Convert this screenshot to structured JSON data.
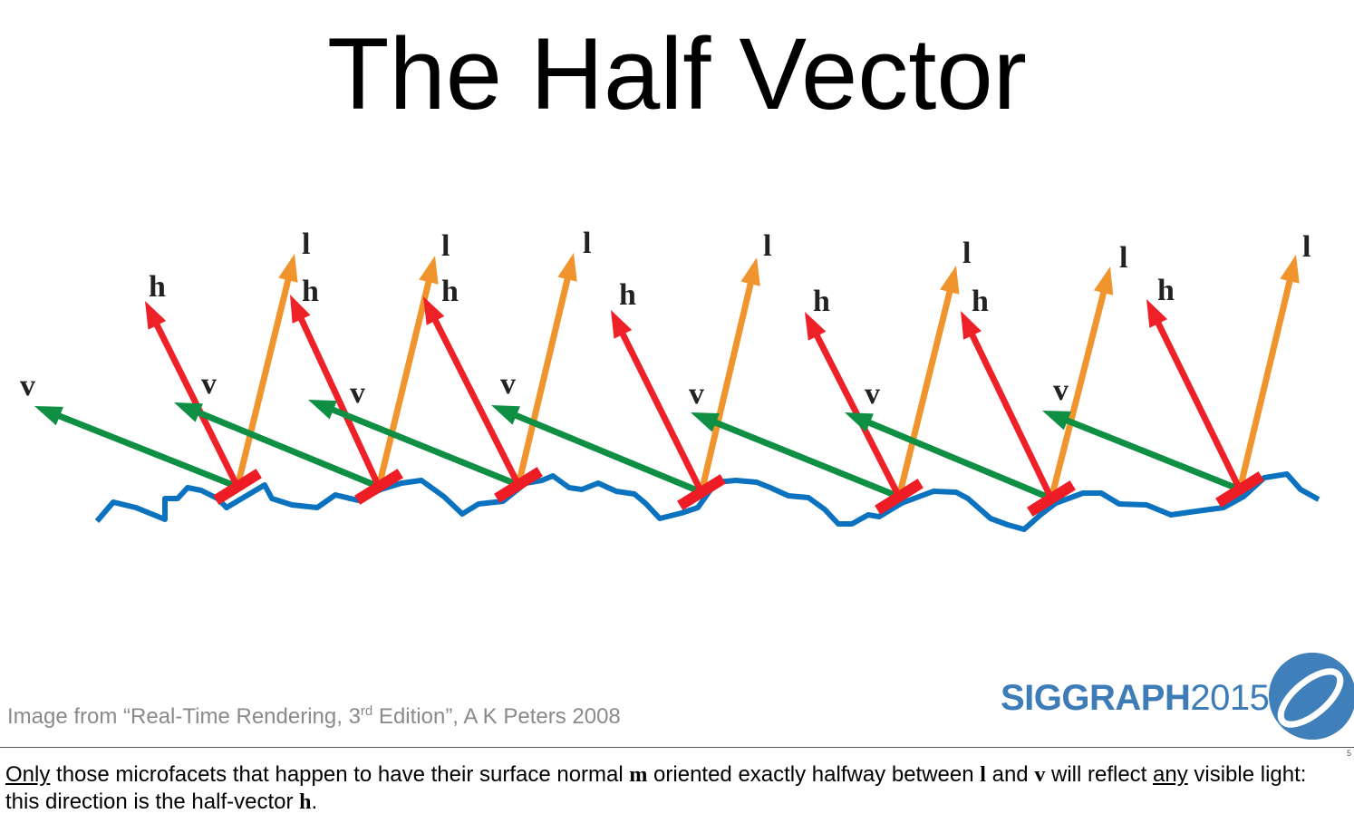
{
  "slide": {
    "title": "The Half Vector"
  },
  "diagram": {
    "labels": {
      "view": "v",
      "half": "h",
      "light": "l"
    },
    "colors": {
      "surface": "#0a72be",
      "facet": "#ee1c24",
      "view": "#0e8f43",
      "half": "#ee2128",
      "light": "#f0952e"
    }
  },
  "credit": {
    "prefix": "Image from “Real-Time Rendering, 3",
    "superscript": "rd",
    "suffix": " Edition”, A K Peters 2008"
  },
  "logo": {
    "bold": "SIGGRAPH",
    "year": "2015",
    "icon": "siggraph-swirl-icon"
  },
  "footer": {
    "page_number": "5"
  },
  "notes": {
    "w1": "Only",
    "t1": " those microfacets that happen to have their surface normal ",
    "m": "m",
    "t2": " oriented exactly halfway between ",
    "l": "l",
    "t3": " and ",
    "v": "v",
    "t4": " will reflect ",
    "w2": "any",
    "t5": " visible light: this direction is the half-vector ",
    "h": "h",
    "t6": "."
  }
}
